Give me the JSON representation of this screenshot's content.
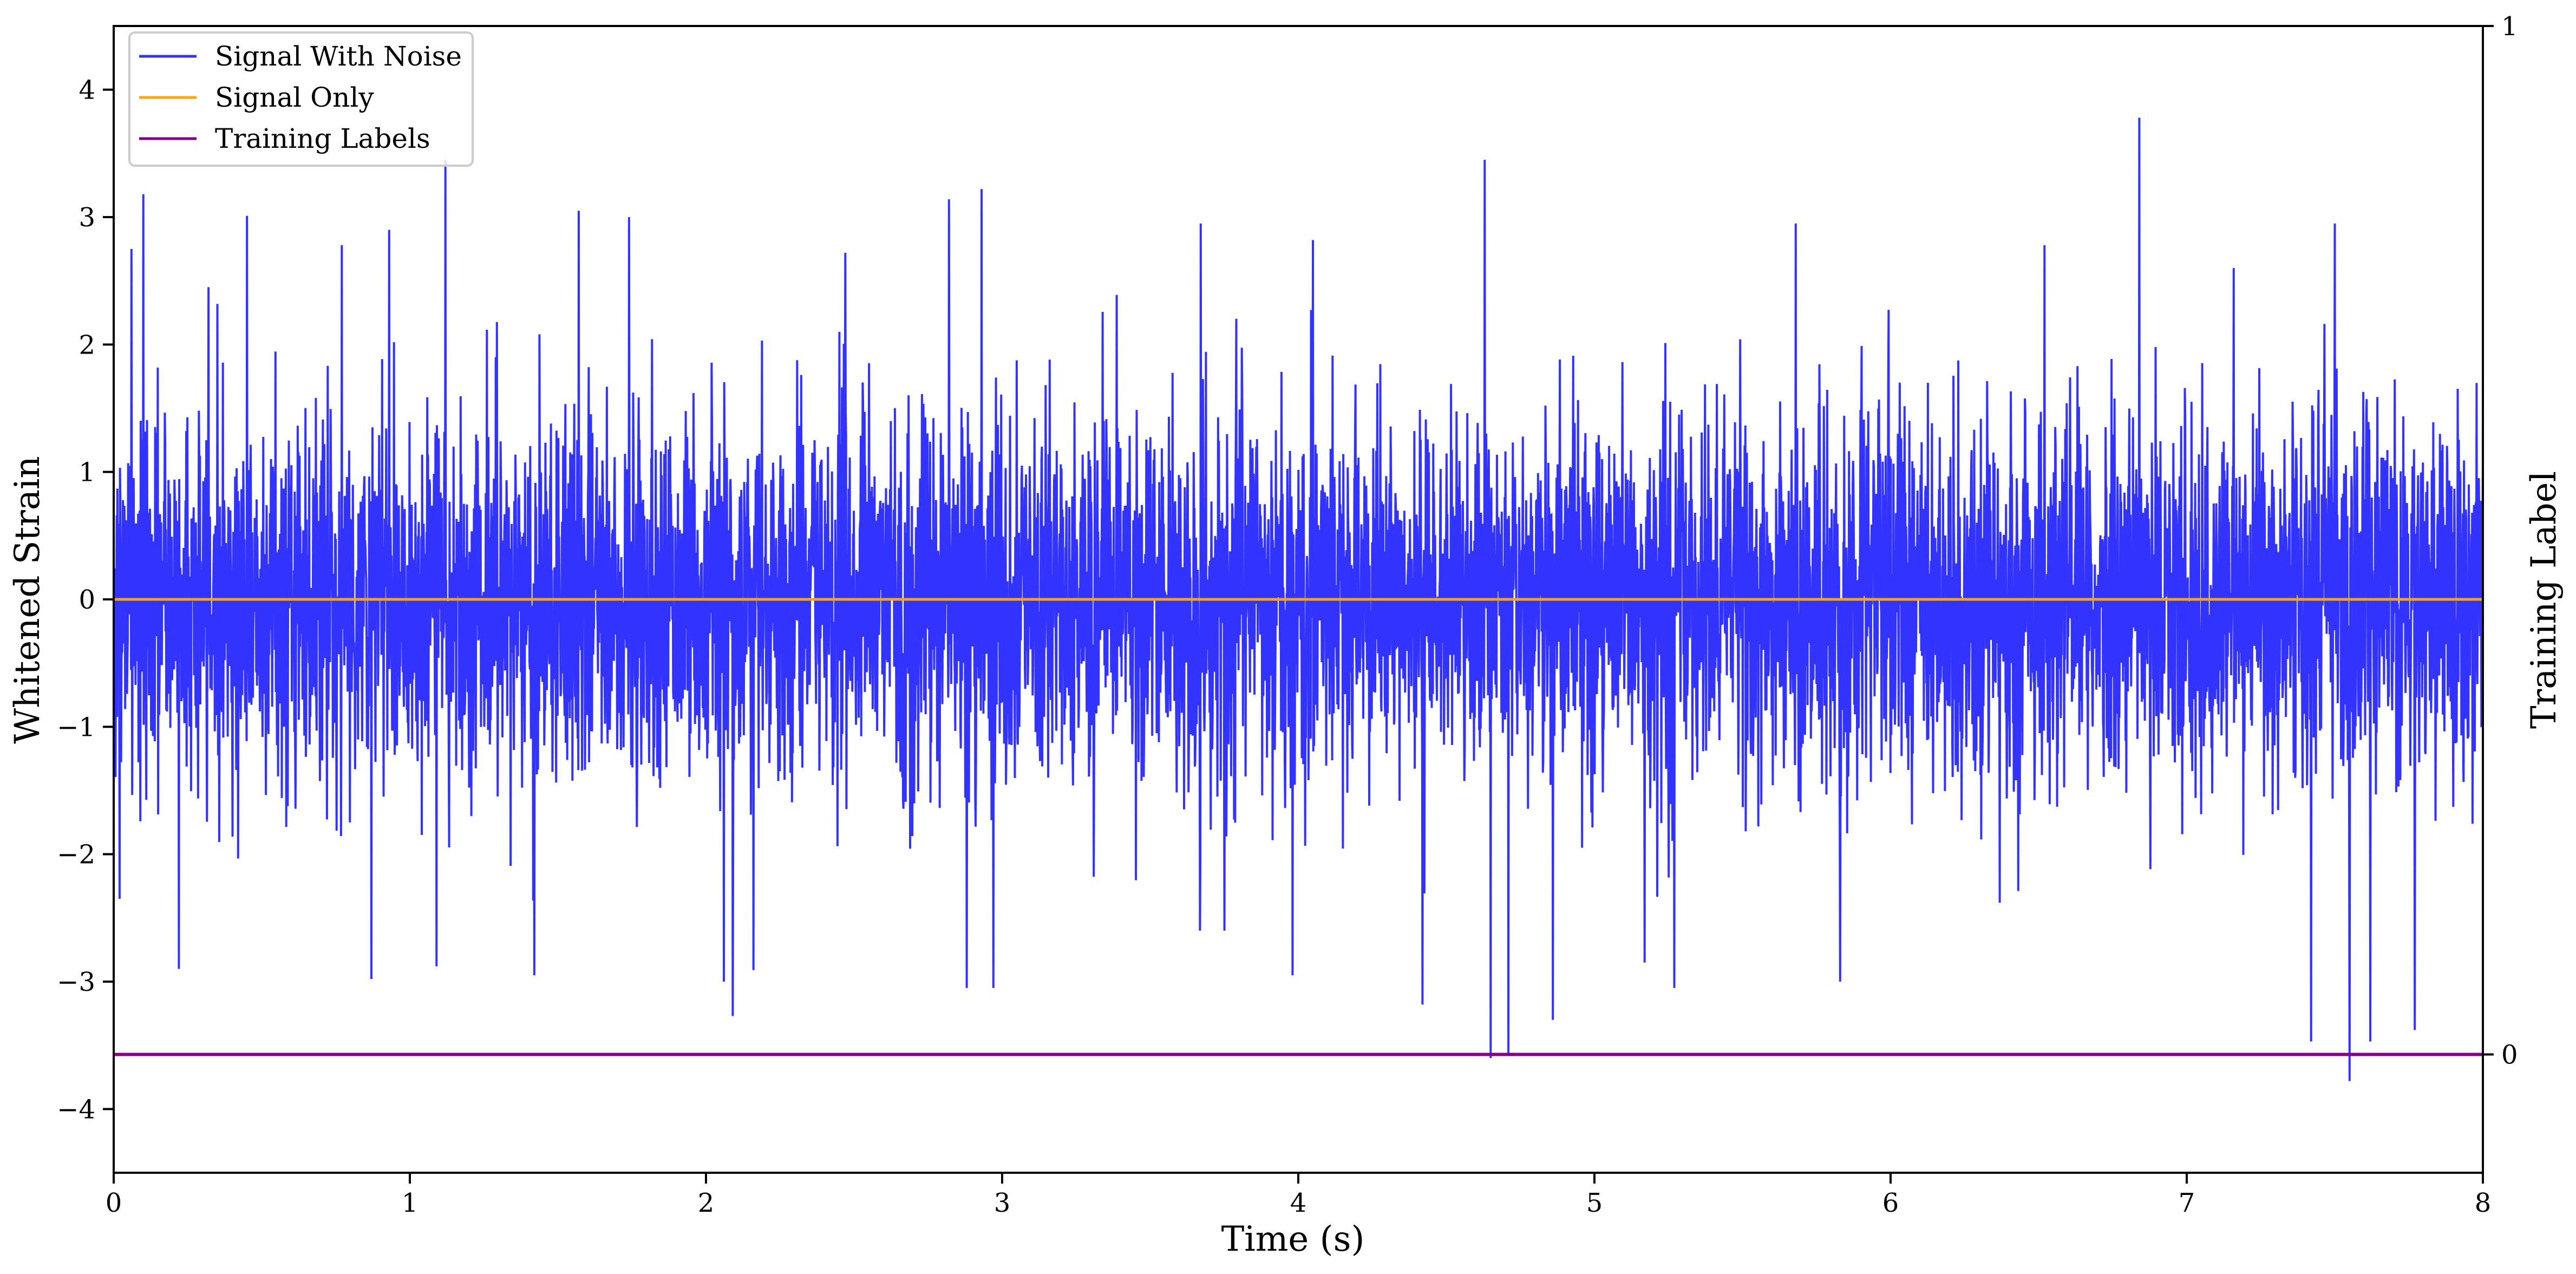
{
  "chart_data": {
    "type": "line",
    "title": "",
    "xlabel": "Time (s)",
    "ylabel": "Whitened Strain",
    "y2label": "Training Label",
    "xlim": [
      0,
      8
    ],
    "ylim": [
      -4.5,
      4.5
    ],
    "y2lim": [
      -0.115,
      1
    ],
    "x_ticks": [
      0,
      1,
      2,
      3,
      4,
      5,
      6,
      7,
      8
    ],
    "x_tick_labels": [
      "0",
      "1",
      "2",
      "3",
      "4",
      "5",
      "6",
      "7",
      "8"
    ],
    "y_ticks": [
      -4,
      -3,
      -2,
      -1,
      0,
      1,
      2,
      3,
      4
    ],
    "y_tick_labels": [
      "−4",
      "−3",
      "−2",
      "−1",
      "0",
      "1",
      "2",
      "3",
      "4"
    ],
    "y2_ticks": [
      0,
      1
    ],
    "y2_tick_labels": [
      "0",
      "1"
    ],
    "grid": false,
    "legend_position": "upper-left",
    "series": [
      {
        "name": "Signal With Noise",
        "color": "#3333ff",
        "axis": "left",
        "description": "Gaussian whitened noise, ~0.75 std, sampled densely over 0-8 s",
        "peaks": [
          {
            "x": 0.06,
            "y": 2.75
          },
          {
            "x": 0.1,
            "y": 3.18
          },
          {
            "x": 0.32,
            "y": 2.45
          },
          {
            "x": 0.45,
            "y": 3.01
          },
          {
            "x": 0.77,
            "y": 2.78
          },
          {
            "x": 0.93,
            "y": 2.9
          },
          {
            "x": 1.12,
            "y": 3.45
          },
          {
            "x": 1.57,
            "y": 3.05
          },
          {
            "x": 1.74,
            "y": 3.0
          },
          {
            "x": 2.47,
            "y": 2.72
          },
          {
            "x": 2.82,
            "y": 3.14
          },
          {
            "x": 2.93,
            "y": 3.22
          },
          {
            "x": 3.67,
            "y": 2.95
          },
          {
            "x": 4.05,
            "y": 2.82
          },
          {
            "x": 4.63,
            "y": 3.45
          },
          {
            "x": 5.68,
            "y": 2.95
          },
          {
            "x": 6.52,
            "y": 2.78
          },
          {
            "x": 6.84,
            "y": 3.78
          },
          {
            "x": 7.5,
            "y": 2.95
          }
        ],
        "troughs": [
          {
            "x": 0.02,
            "y": -2.35
          },
          {
            "x": 0.22,
            "y": -2.9
          },
          {
            "x": 0.87,
            "y": -2.98
          },
          {
            "x": 1.09,
            "y": -2.88
          },
          {
            "x": 1.42,
            "y": -2.95
          },
          {
            "x": 2.06,
            "y": -3.0
          },
          {
            "x": 2.09,
            "y": -3.27
          },
          {
            "x": 2.16,
            "y": -2.91
          },
          {
            "x": 2.88,
            "y": -3.05
          },
          {
            "x": 2.97,
            "y": -3.05
          },
          {
            "x": 3.98,
            "y": -2.95
          },
          {
            "x": 4.42,
            "y": -3.18
          },
          {
            "x": 4.65,
            "y": -3.6
          },
          {
            "x": 4.71,
            "y": -3.57
          },
          {
            "x": 4.86,
            "y": -3.3
          },
          {
            "x": 5.17,
            "y": -2.85
          },
          {
            "x": 5.27,
            "y": -3.05
          },
          {
            "x": 5.83,
            "y": -3.0
          },
          {
            "x": 7.55,
            "y": -3.78
          },
          {
            "x": 7.42,
            "y": -3.47
          },
          {
            "x": 7.62,
            "y": -3.47
          },
          {
            "x": 7.77,
            "y": -3.38
          }
        ]
      },
      {
        "name": "Signal Only",
        "color": "#ffa500",
        "axis": "left",
        "x": [
          0,
          8
        ],
        "y": [
          0,
          0
        ]
      },
      {
        "name": "Training Labels",
        "color": "#800080",
        "axis": "right",
        "x": [
          0,
          8
        ],
        "y": [
          0,
          0
        ]
      }
    ]
  }
}
